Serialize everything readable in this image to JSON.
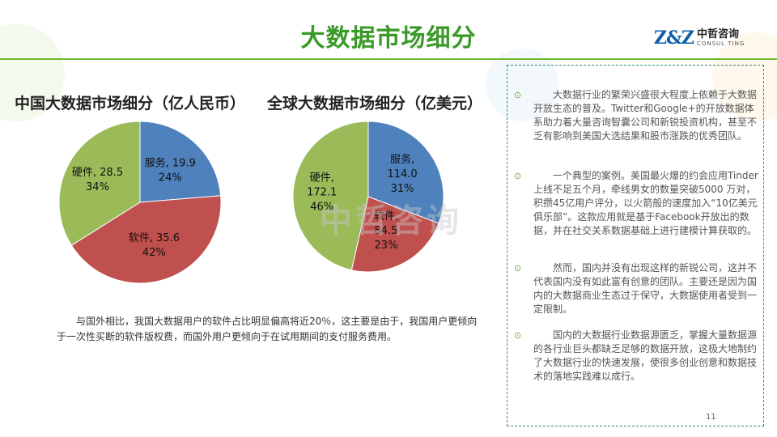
{
  "title": "大数据市场细分",
  "logo": {
    "mark": "Z&Z",
    "cn": "中哲咨询",
    "en": "CONSUL TING"
  },
  "watermark": "中哲咨询",
  "colors": {
    "service": "#4f81bd",
    "software": "#c0504d",
    "hardware": "#9bbb59",
    "accent": "#3a9a28"
  },
  "chart_data": [
    {
      "type": "pie",
      "title": "中国大数据市场细分（亿人民币）",
      "slices": [
        {
          "name": "服务",
          "value": 19.9,
          "percent": "24%",
          "value_label": "19.9"
        },
        {
          "name": "软件",
          "value": 35.6,
          "percent": "42%",
          "value_label": "35.6"
        },
        {
          "name": "硬件",
          "value": 28.5,
          "percent": "34%",
          "value_label": "28.5"
        }
      ]
    },
    {
      "type": "pie",
      "title": "全球大数据市场细分（亿美元）",
      "slices": [
        {
          "name": "服务",
          "value": 114.0,
          "percent": "31%",
          "value_label": "114.0"
        },
        {
          "name": "软件",
          "value": 84.5,
          "percent": "23%",
          "value_label": "84.5"
        },
        {
          "name": "硬件",
          "value": 172.1,
          "percent": "46%",
          "value_label": "172.1"
        }
      ]
    }
  ],
  "body_text": "与国外相比，我国大数据用户的软件占比明显偏高将近20％，这主要是由于，我国用户更倾向于一次性买断的软件版权费，而国外用户更倾向于在试用期间的支付服务费用。",
  "bullets": [
    {
      "mark": "⊙",
      "text": "大数据行业的繁荣兴盛很大程度上依赖于大数据开放生态的普及。Twitter和Google+的开放数据体系助力着大量咨询智囊公司和新锐投资机构，甚至不乏有影响到美国大选结果和股市涨跌的优秀团队。"
    },
    {
      "mark": "⊙",
      "text": "一个典型的案例。美国最火爆的约会应用Tinder上线不足五个月，牵线男女的数量突破5000 万对，积攒45亿用户评分，以火箭般的速度加入“10亿美元俱乐部”。这款应用就是基于Facebook开放出的数据，并在社交关系数据基础上进行建模计算获取的。"
    },
    {
      "mark": "⊙",
      "text": "然而，国内并没有出现这样的新锐公司，这并不代表国内没有如此富有创意的团队。主要还是因为国内的大数据商业生态过于保守，大数据使用者受到一定限制。"
    },
    {
      "mark": "⊙",
      "text": "国内的大数据行业数据源匮乏，掌握大量数据源的各行业巨头都缺乏足够的数据开放，这极大地制约了大数据行业的快速发展，使很多创业创意和数据技术的落地实践难以成行。"
    }
  ],
  "page_number": "11"
}
